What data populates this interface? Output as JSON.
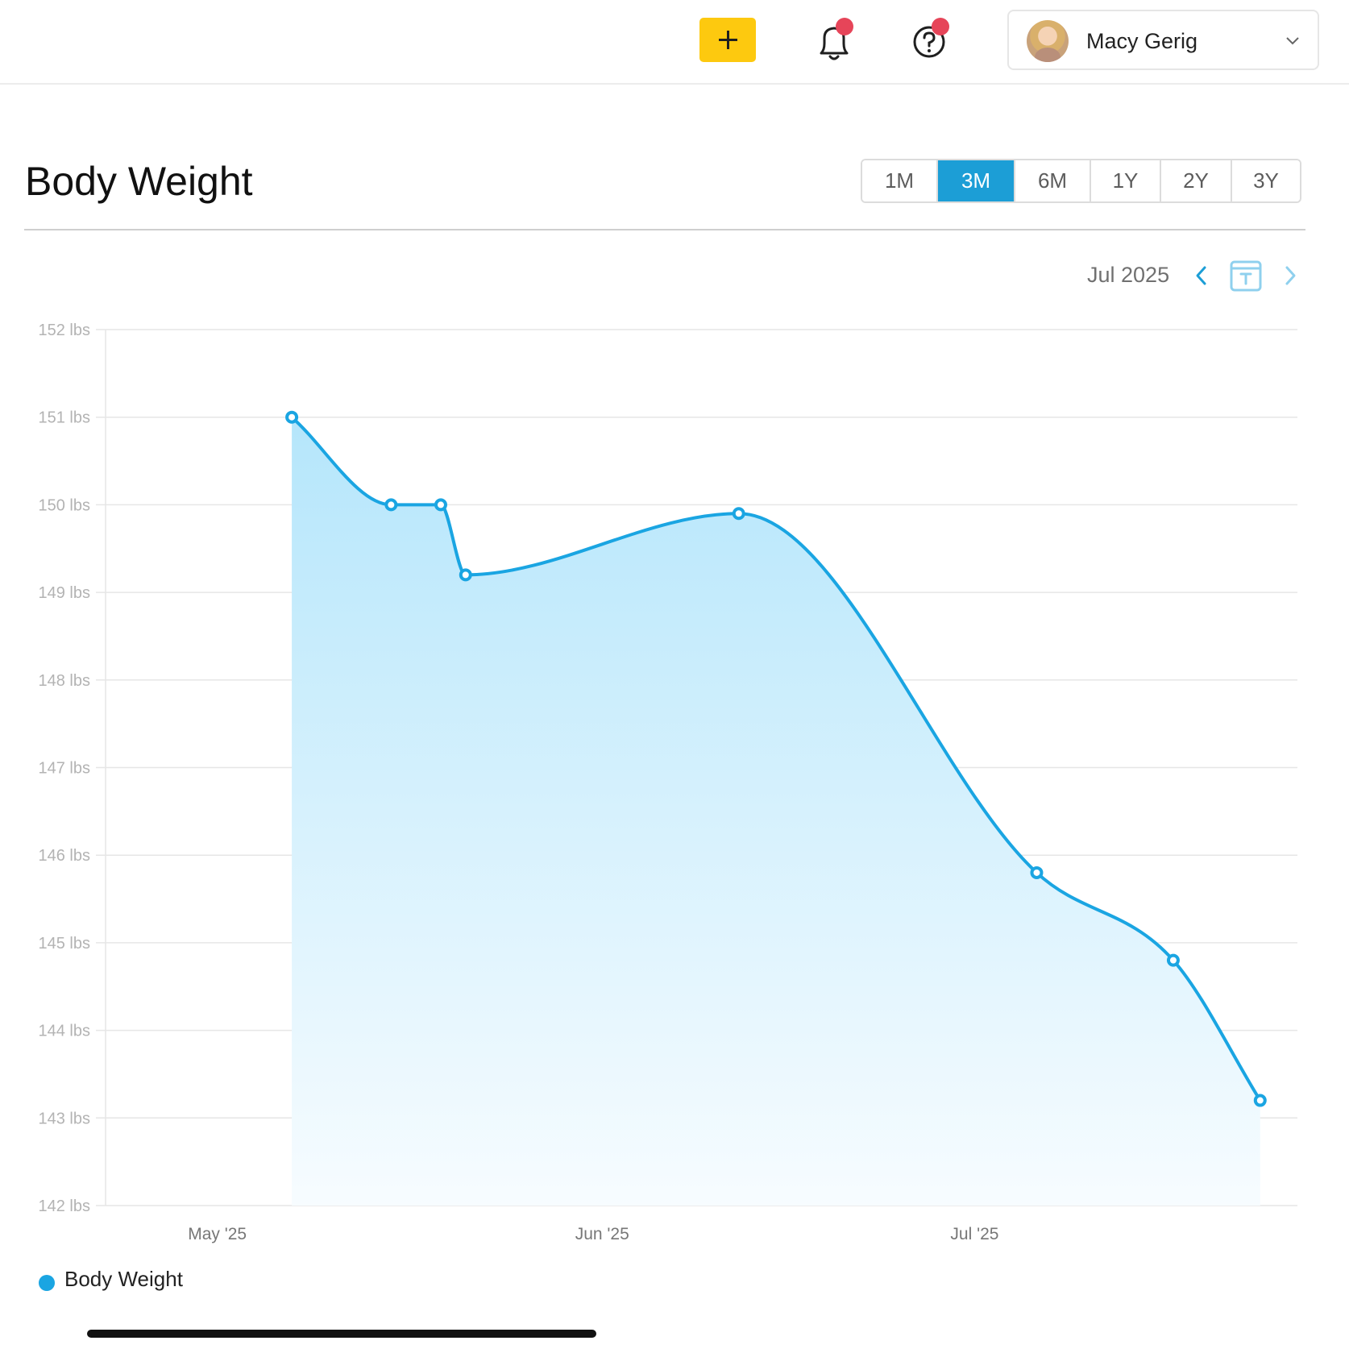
{
  "header": {
    "user_name": "Macy Gerig"
  },
  "page": {
    "title": "Body Weight",
    "ranges": [
      "1M",
      "3M",
      "6M",
      "1Y",
      "2Y",
      "3Y"
    ],
    "active_range": "3M",
    "period_label": "Jul 2025"
  },
  "colors": {
    "accent": "#1c9ed6",
    "line": "#1aa5e2",
    "add_button": "#fdc90f",
    "notification": "#e64559"
  },
  "icons": {
    "add": "plus-icon",
    "notifications": "bell-icon",
    "help": "question-icon",
    "user_menu": "chevron-down-icon",
    "prev": "chevron-left-icon",
    "today": "calendar-today-icon",
    "next": "chevron-right-icon"
  },
  "chart_data": {
    "type": "area",
    "title": "",
    "xlabel": "",
    "ylabel": "",
    "x_tick_labels": [
      "May '25",
      "Jun '25",
      "Jul '25"
    ],
    "y_tick_labels": [
      "152 lbs",
      "151 lbs",
      "150 lbs",
      "149 lbs",
      "148 lbs",
      "147 lbs",
      "146 lbs",
      "145 lbs",
      "144 lbs",
      "143 lbs",
      "142 lbs"
    ],
    "ylim": [
      142,
      152
    ],
    "xlim": [
      "2025-04-22",
      "2025-07-27"
    ],
    "grid": true,
    "legend_position": "bottom-left",
    "series": [
      {
        "name": "Body Weight",
        "points": [
          {
            "x": "2025-05-07",
            "y": 151.0
          },
          {
            "x": "2025-05-15",
            "y": 150.0
          },
          {
            "x": "2025-05-19",
            "y": 150.0
          },
          {
            "x": "2025-05-21",
            "y": 149.2
          },
          {
            "x": "2025-06-12",
            "y": 149.9
          },
          {
            "x": "2025-07-06",
            "y": 145.8
          },
          {
            "x": "2025-07-17",
            "y": 144.8
          },
          {
            "x": "2025-07-24",
            "y": 143.2
          }
        ]
      }
    ]
  }
}
